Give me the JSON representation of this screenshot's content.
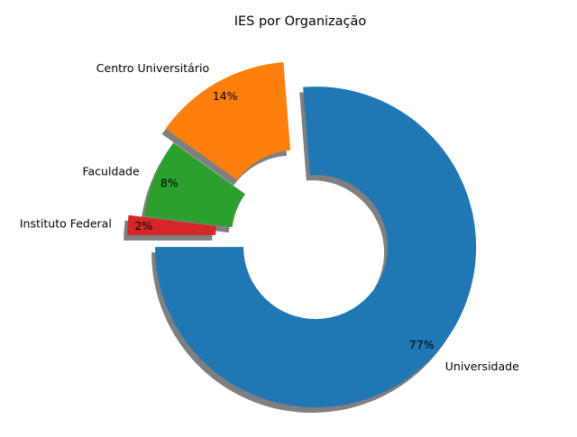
{
  "chart_data": {
    "type": "pie",
    "variant": "donut",
    "title": "IES por Organização",
    "categories": [
      "Universidade",
      "Centro Universitário",
      "Faculdade",
      "Instituto Federal"
    ],
    "values": [
      77,
      14,
      8,
      2
    ],
    "percent_labels": [
      "77%",
      "14%",
      "8%",
      "2%"
    ],
    "colors": [
      "#1f77b4",
      "#ff7f0e",
      "#2ca02c",
      "#d62728"
    ],
    "exploded": [
      true,
      true,
      false,
      true
    ],
    "shadow": true,
    "start_angle": 180,
    "direction": "counterclockwise"
  }
}
